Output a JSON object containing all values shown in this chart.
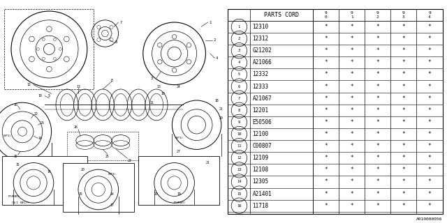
{
  "bg_color": "#ffffff",
  "parts": [
    {
      "num": "1",
      "code": "12310"
    },
    {
      "num": "2",
      "code": "12312"
    },
    {
      "num": "3",
      "code": "G21202"
    },
    {
      "num": "4",
      "code": "A21066"
    },
    {
      "num": "5",
      "code": "12332"
    },
    {
      "num": "6",
      "code": "12333"
    },
    {
      "num": "7",
      "code": "A21067"
    },
    {
      "num": "8",
      "code": "12201"
    },
    {
      "num": "9",
      "code": "E50506"
    },
    {
      "num": "10",
      "code": "12100"
    },
    {
      "num": "11",
      "code": "C00807"
    },
    {
      "num": "12",
      "code": "12109"
    },
    {
      "num": "13",
      "code": "12108"
    },
    {
      "num": "14",
      "code": "12305"
    },
    {
      "num": "15",
      "code": "A21401"
    },
    {
      "num": "16",
      "code": "11718"
    }
  ],
  "col_headers": [
    "9\n0",
    "9\n1",
    "9\n2",
    "9\n3",
    "9\n4"
  ],
  "header_label": "PARTS CORD",
  "footer_code": "A010000056",
  "font_size": 5.5,
  "header_font_size": 6.0
}
